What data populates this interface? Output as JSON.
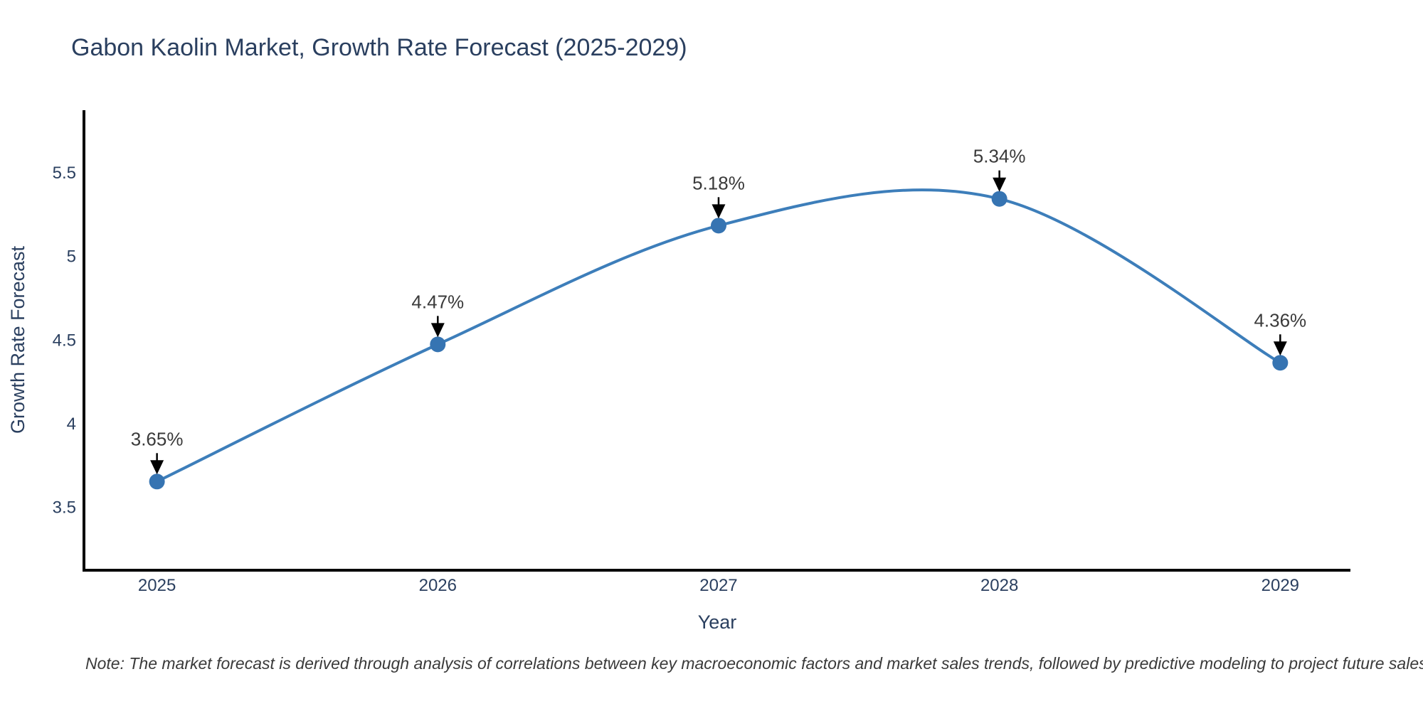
{
  "title": "Gabon Kaolin Market, Growth Rate Forecast (2025-2029)",
  "note": "Note: The market forecast is derived through analysis of correlations between key macroeconomic factors and market sales trends, followed by predictive modeling to project future sales",
  "chart_data": {
    "type": "line",
    "title": "Gabon Kaolin Market, Growth Rate Forecast (2025-2029)",
    "xlabel": "Year",
    "ylabel": "Growth Rate Forecast",
    "x": [
      2025,
      2026,
      2027,
      2028,
      2029
    ],
    "xtick_labels": [
      "2025",
      "2026",
      "2027",
      "2028",
      "2029"
    ],
    "values": [
      3.65,
      4.47,
      5.18,
      5.34,
      4.36
    ],
    "point_labels": [
      "3.65%",
      "4.47%",
      "5.18%",
      "5.34%",
      "4.36%"
    ],
    "yticks": [
      3.5,
      4,
      4.5,
      5,
      5.5
    ],
    "ytick_labels": [
      "3.5",
      "4",
      "4.5",
      "5",
      "5.5"
    ],
    "xlim": [
      2024.74,
      2029.25
    ],
    "ylim": [
      3.12,
      5.87
    ],
    "curve": "spline",
    "grid": false,
    "legend_position": "none",
    "line_color": "#3d7eba",
    "marker_color": "#3674b2",
    "axis_line_color": "#000000",
    "annotation_arrow_color": "#000000",
    "title_color": "#2a3f5f",
    "background_color": "#ffffff"
  }
}
